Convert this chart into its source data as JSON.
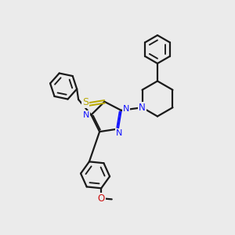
{
  "bg_color": "#ebebeb",
  "bond_color": "#1a1a1a",
  "N_color": "#1414ff",
  "S_color": "#b8a800",
  "O_color": "#cc1010",
  "line_width": 1.6,
  "figsize": [
    3.0,
    3.0
  ],
  "dpi": 100,
  "xlim": [
    0,
    10
  ],
  "ylim": [
    0,
    10
  ]
}
